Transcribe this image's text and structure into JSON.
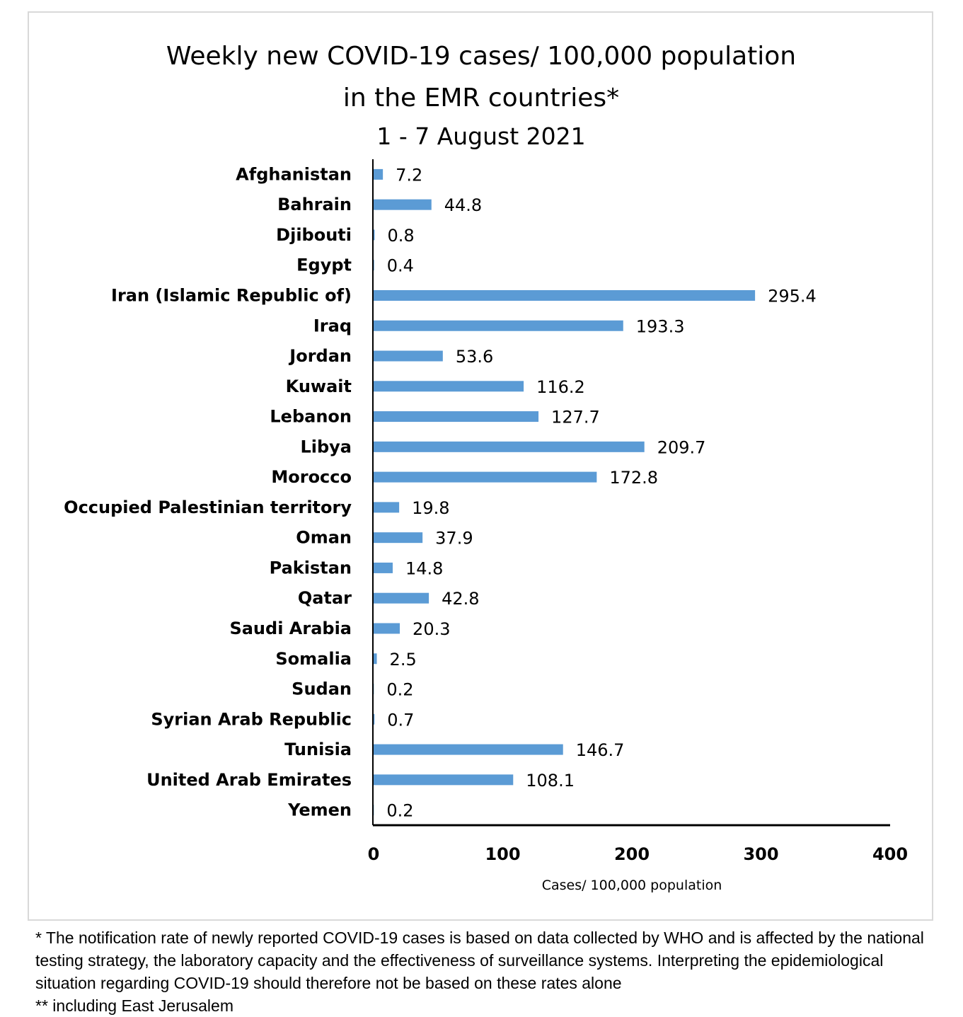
{
  "chart_data": {
    "type": "bar",
    "orientation": "horizontal",
    "title": [
      "Weekly new COVID-19 cases/ 100,000 population",
      "in the EMR countries*"
    ],
    "subtitle": "1 - 7 August 2021",
    "xlabel": "Cases/ 100,000 population",
    "ylabel": "",
    "xlim": [
      0,
      400
    ],
    "xticks": [
      "0",
      "100",
      "200",
      "300",
      "400"
    ],
    "grid": false,
    "bar_color": "#5b9bd5",
    "categories": [
      "Afghanistan",
      "Bahrain",
      "Djibouti",
      "Egypt",
      "Iran (Islamic Republic of)",
      "Iraq",
      "Jordan",
      "Kuwait",
      "Lebanon",
      "Libya",
      "Morocco",
      "Occupied Palestinian territory",
      "Oman",
      "Pakistan",
      "Qatar",
      "Saudi Arabia",
      "Somalia",
      "Sudan",
      "Syrian Arab Republic",
      "Tunisia",
      "United Arab Emirates",
      "Yemen"
    ],
    "values": [
      7.2,
      44.8,
      0.8,
      0.4,
      295.4,
      193.3,
      53.6,
      116.2,
      127.7,
      209.7,
      172.8,
      19.8,
      37.9,
      14.8,
      42.8,
      20.3,
      2.5,
      0.2,
      0.7,
      146.7,
      108.1,
      0.2
    ],
    "data_labels": [
      "7.2",
      "44.8",
      "0.8",
      "0.4",
      "295.4",
      "193.3",
      "53.6",
      "116.2",
      "127.7",
      "209.7",
      "172.8",
      "19.8",
      "37.9",
      "14.8",
      "42.8",
      "20.3",
      "2.5",
      "0.2",
      "0.7",
      "146.7",
      "108.1",
      "0.2"
    ]
  },
  "footnotes": [
    "* The notification rate of newly reported COVID-19 cases is based on data collected by WHO and is affected by the national testing strategy, the laboratory capacity and the effectiveness of surveillance systems. Interpreting the epidemiological situation regarding COVID-19 should therefore not be based on these rates alone",
    "** including East Jerusalem"
  ]
}
